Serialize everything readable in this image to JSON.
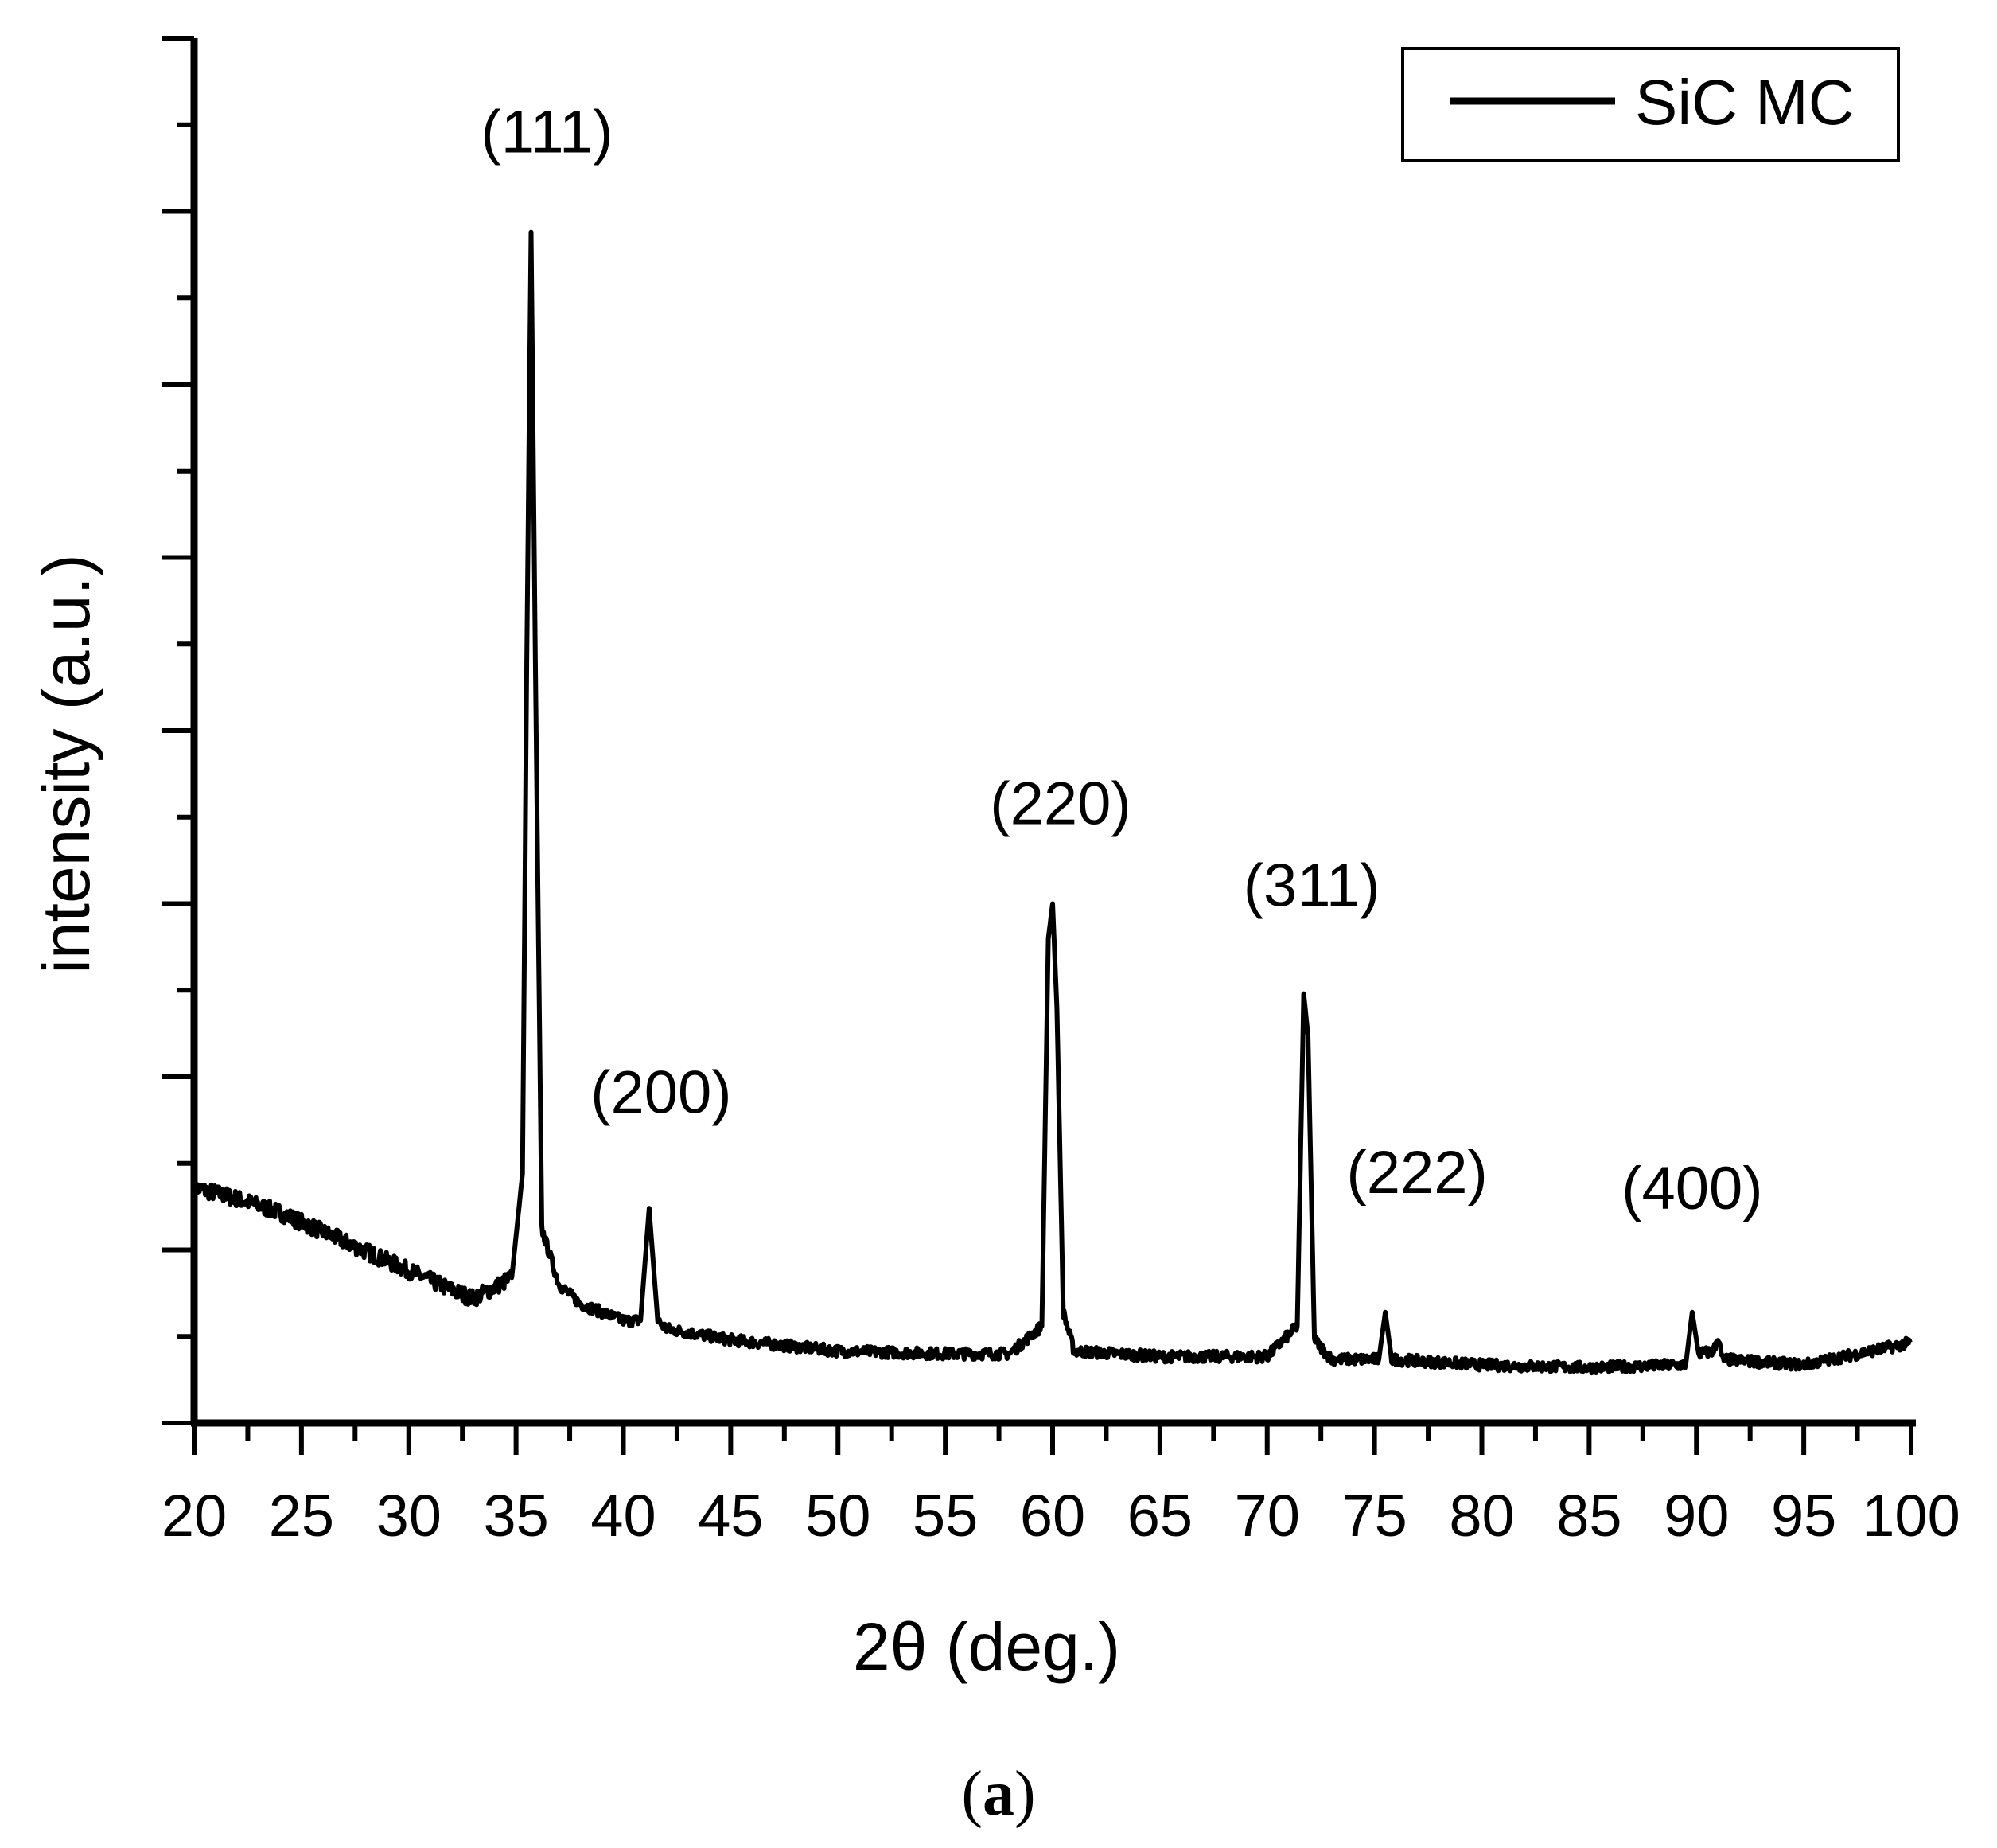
{
  "chart_data": {
    "type": "line",
    "title": "",
    "xlabel": "2θ (deg.)",
    "ylabel": "intensity (a.u.)",
    "xlim": [
      20,
      100
    ],
    "ylim": [
      0,
      100
    ],
    "x_ticks": [
      "20",
      "25",
      "30",
      "35",
      "40",
      "45",
      "50",
      "55",
      "60",
      "65",
      "70",
      "75",
      "80",
      "85",
      "90",
      "95",
      "100"
    ],
    "y_tick_labels_shown": false,
    "grid": false,
    "legend": {
      "position": "top-right",
      "entries": [
        "SiC MC"
      ]
    },
    "series": [
      {
        "name": "SiC MC",
        "color": "#000000",
        "points": [
          [
            20,
            17.0
          ],
          [
            22,
            16.2
          ],
          [
            24,
            15.2
          ],
          [
            26,
            13.8
          ],
          [
            28,
            12.4
          ],
          [
            30,
            11.0
          ],
          [
            32,
            9.6
          ],
          [
            33,
            9.0
          ],
          [
            34,
            9.8
          ],
          [
            34.8,
            10.5
          ],
          [
            35.3,
            18.0
          ],
          [
            35.5,
            55.0
          ],
          [
            35.7,
            86.0
          ],
          [
            35.9,
            55.0
          ],
          [
            36.2,
            14.0
          ],
          [
            37,
            10.0
          ],
          [
            38,
            8.6
          ],
          [
            39,
            8.0
          ],
          [
            40,
            7.4
          ],
          [
            40.8,
            7.4
          ],
          [
            41.2,
            15.5
          ],
          [
            41.6,
            7.4
          ],
          [
            42,
            6.8
          ],
          [
            45,
            6.0
          ],
          [
            50,
            5.2
          ],
          [
            55,
            5.0
          ],
          [
            58,
            5.0
          ],
          [
            59.5,
            7.0
          ],
          [
            59.8,
            35.0
          ],
          [
            60.0,
            37.5
          ],
          [
            60.2,
            30.0
          ],
          [
            60.5,
            8.0
          ],
          [
            61,
            5.2
          ],
          [
            65,
            4.8
          ],
          [
            70,
            4.8
          ],
          [
            71.4,
            7.0
          ],
          [
            71.7,
            31.0
          ],
          [
            71.9,
            28.0
          ],
          [
            72.2,
            6.0
          ],
          [
            73,
            4.6
          ],
          [
            75.2,
            4.6
          ],
          [
            75.5,
            8.0
          ],
          [
            75.8,
            4.6
          ],
          [
            80,
            4.2
          ],
          [
            85,
            4.0
          ],
          [
            89.5,
            4.2
          ],
          [
            89.8,
            8.0
          ],
          [
            90.1,
            5.0
          ],
          [
            90.8,
            5.2
          ],
          [
            91.0,
            6.2
          ],
          [
            91.2,
            4.6
          ],
          [
            95,
            4.2
          ],
          [
            100,
            5.8
          ]
        ]
      }
    ],
    "annotations": [
      {
        "text": "(111)",
        "x": 35.7
      },
      {
        "text": "(200)",
        "x": 41.2
      },
      {
        "text": "(220)",
        "x": 60.0
      },
      {
        "text": "(311)",
        "x": 71.7
      },
      {
        "text": "(222)",
        "x": 75.5
      },
      {
        "text": "(400)",
        "x": 89.8
      }
    ]
  },
  "caption": {
    "open": "(",
    "letter": "a",
    "close": ")"
  }
}
